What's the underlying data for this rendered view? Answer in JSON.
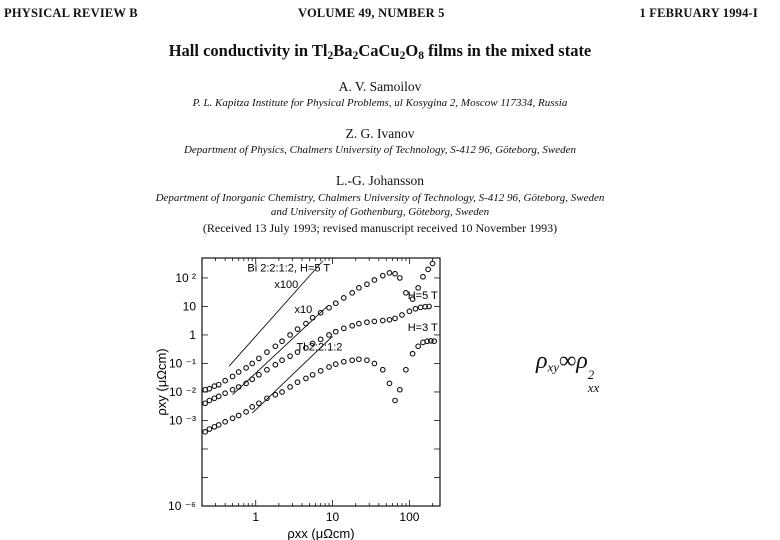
{
  "header": {
    "journal": "PHYSICAL REVIEW B",
    "volume": "VOLUME 49, NUMBER 5",
    "date": "1 FEBRUARY 1994-I"
  },
  "title": {
    "prefix": "Hall conductivity in Tl",
    "s1": "2",
    "t1": "Ba",
    "s2": "2",
    "t2": "CaCu",
    "s3": "2",
    "t3": "O",
    "s4": "8",
    "suffix": " films in the mixed state"
  },
  "authors": [
    {
      "name": "A. V. Samoilov",
      "affiliation": "P. L. Kapitza Institute for Physical Problems, ul Kosygina 2, Moscow 117334, Russia"
    },
    {
      "name": "Z. G. Ivanov",
      "affiliation": "Department of Physics, Chalmers University of Technology, S-412 96, Göteborg, Sweden"
    },
    {
      "name": "L.-G. Johansson",
      "affiliation_line1": "Department of Inorganic Chemistry, Chalmers University of Technology, S-412 96, Göteborg, Sweden",
      "affiliation_line2": "and University of Gothenburg, Göteborg, Sweden"
    }
  ],
  "received": "(Received 13 July 1993; revised manuscript received 10 November 1993)",
  "formula": {
    "rho": "ρ",
    "sub1": "xy",
    "op": "∞",
    "sub2": "xx",
    "sup": "2"
  },
  "chart_data": {
    "type": "scatter",
    "x_scale": "log",
    "y_scale": "log",
    "xlim": [
      0.2,
      250
    ],
    "ylim": [
      1e-06,
      500
    ],
    "x_ticks": [
      {
        "v": 1,
        "label": "1"
      },
      {
        "v": 10,
        "label": "10"
      },
      {
        "v": 100,
        "label": "100"
      }
    ],
    "y_ticks": [
      {
        "v": 100,
        "label": "10 ²"
      },
      {
        "v": 10,
        "label": "10"
      },
      {
        "v": 1,
        "label": "1"
      },
      {
        "v": 0.1,
        "label": "10 ⁻¹"
      },
      {
        "v": 0.01,
        "label": "10 ⁻²"
      },
      {
        "v": 0.001,
        "label": "10 ⁻³"
      },
      {
        "v": 1e-06,
        "label": "10 ⁻⁶"
      }
    ],
    "xlabel": "ρxx (μΩcm)",
    "ylabel": "ρxy (μΩcm)",
    "annotations": [
      {
        "text": "Bi 2:2:1:2,  H=5 T",
        "x": 0.78,
        "y": 170
      },
      {
        "text": "x100",
        "x": 1.75,
        "y": 45
      },
      {
        "text": "x10",
        "x": 3.2,
        "y": 6
      },
      {
        "text": "H=5 T",
        "x": 95,
        "y": 18
      },
      {
        "text": "Tl 2:2:1:2",
        "x": 3.4,
        "y": 0.28
      },
      {
        "text": "H=3 T",
        "x": 95,
        "y": 1.4
      }
    ],
    "reference_lines": [
      {
        "x": [
          0.45,
          7.5
        ],
        "y": [
          0.08,
          400
        ]
      },
      {
        "x": [
          0.5,
          8.5
        ],
        "y": [
          0.008,
          10
        ]
      },
      {
        "x": [
          0.9,
          10
        ],
        "y": [
          0.0018,
          0.9
        ]
      }
    ],
    "series": [
      {
        "x": [
          0.22,
          0.25,
          0.29,
          0.33,
          0.4,
          0.5,
          0.6,
          0.75,
          0.9,
          1.1,
          1.4,
          1.8,
          2.2,
          2.8,
          3.5,
          4.5,
          5.5,
          7,
          9,
          11,
          14,
          18,
          22,
          28,
          35,
          45,
          55,
          65,
          75,
          90,
          110,
          130,
          150,
          175,
          200
        ],
        "y": [
          0.012,
          0.013,
          0.016,
          0.018,
          0.025,
          0.035,
          0.05,
          0.07,
          0.1,
          0.15,
          0.25,
          0.4,
          0.6,
          1,
          1.6,
          2.5,
          4,
          6,
          9,
          13,
          20,
          30,
          45,
          60,
          85,
          120,
          150,
          140,
          100,
          30,
          18,
          45,
          110,
          200,
          320
        ]
      },
      {
        "x": [
          0.22,
          0.25,
          0.29,
          0.33,
          0.4,
          0.5,
          0.6,
          0.75,
          0.9,
          1.1,
          1.4,
          1.8,
          2.2,
          2.8,
          3.5,
          4.5,
          5.5,
          7,
          9,
          11,
          14,
          18,
          22,
          28,
          35,
          45,
          55,
          65,
          80,
          100,
          120,
          140,
          160,
          180
        ],
        "y": [
          0.004,
          0.005,
          0.006,
          0.007,
          0.009,
          0.012,
          0.015,
          0.02,
          0.028,
          0.04,
          0.06,
          0.09,
          0.13,
          0.18,
          0.25,
          0.35,
          0.5,
          0.7,
          1,
          1.3,
          1.7,
          2.1,
          2.5,
          2.8,
          3,
          3.2,
          3.4,
          3.8,
          5,
          6.8,
          8.3,
          9.3,
          9.8,
          10
        ]
      },
      {
        "x": [
          0.22,
          0.25,
          0.29,
          0.33,
          0.4,
          0.5,
          0.6,
          0.75,
          0.9,
          1.1,
          1.4,
          1.8,
          2.2,
          2.8,
          3.5,
          4.5,
          5.5,
          7,
          9,
          11,
          14,
          18,
          22,
          28,
          35,
          45,
          55,
          65,
          75,
          90,
          110,
          130,
          150,
          170,
          190,
          210
        ],
        "y": [
          0.0004,
          0.0005,
          0.0006,
          0.0007,
          0.0009,
          0.0012,
          0.0015,
          0.002,
          0.003,
          0.004,
          0.006,
          0.008,
          0.01,
          0.015,
          0.022,
          0.03,
          0.04,
          0.055,
          0.075,
          0.095,
          0.115,
          0.13,
          0.14,
          0.13,
          0.1,
          0.06,
          0.02,
          0.005,
          0.012,
          0.06,
          0.22,
          0.4,
          0.55,
          0.6,
          0.62,
          0.6
        ]
      }
    ]
  }
}
